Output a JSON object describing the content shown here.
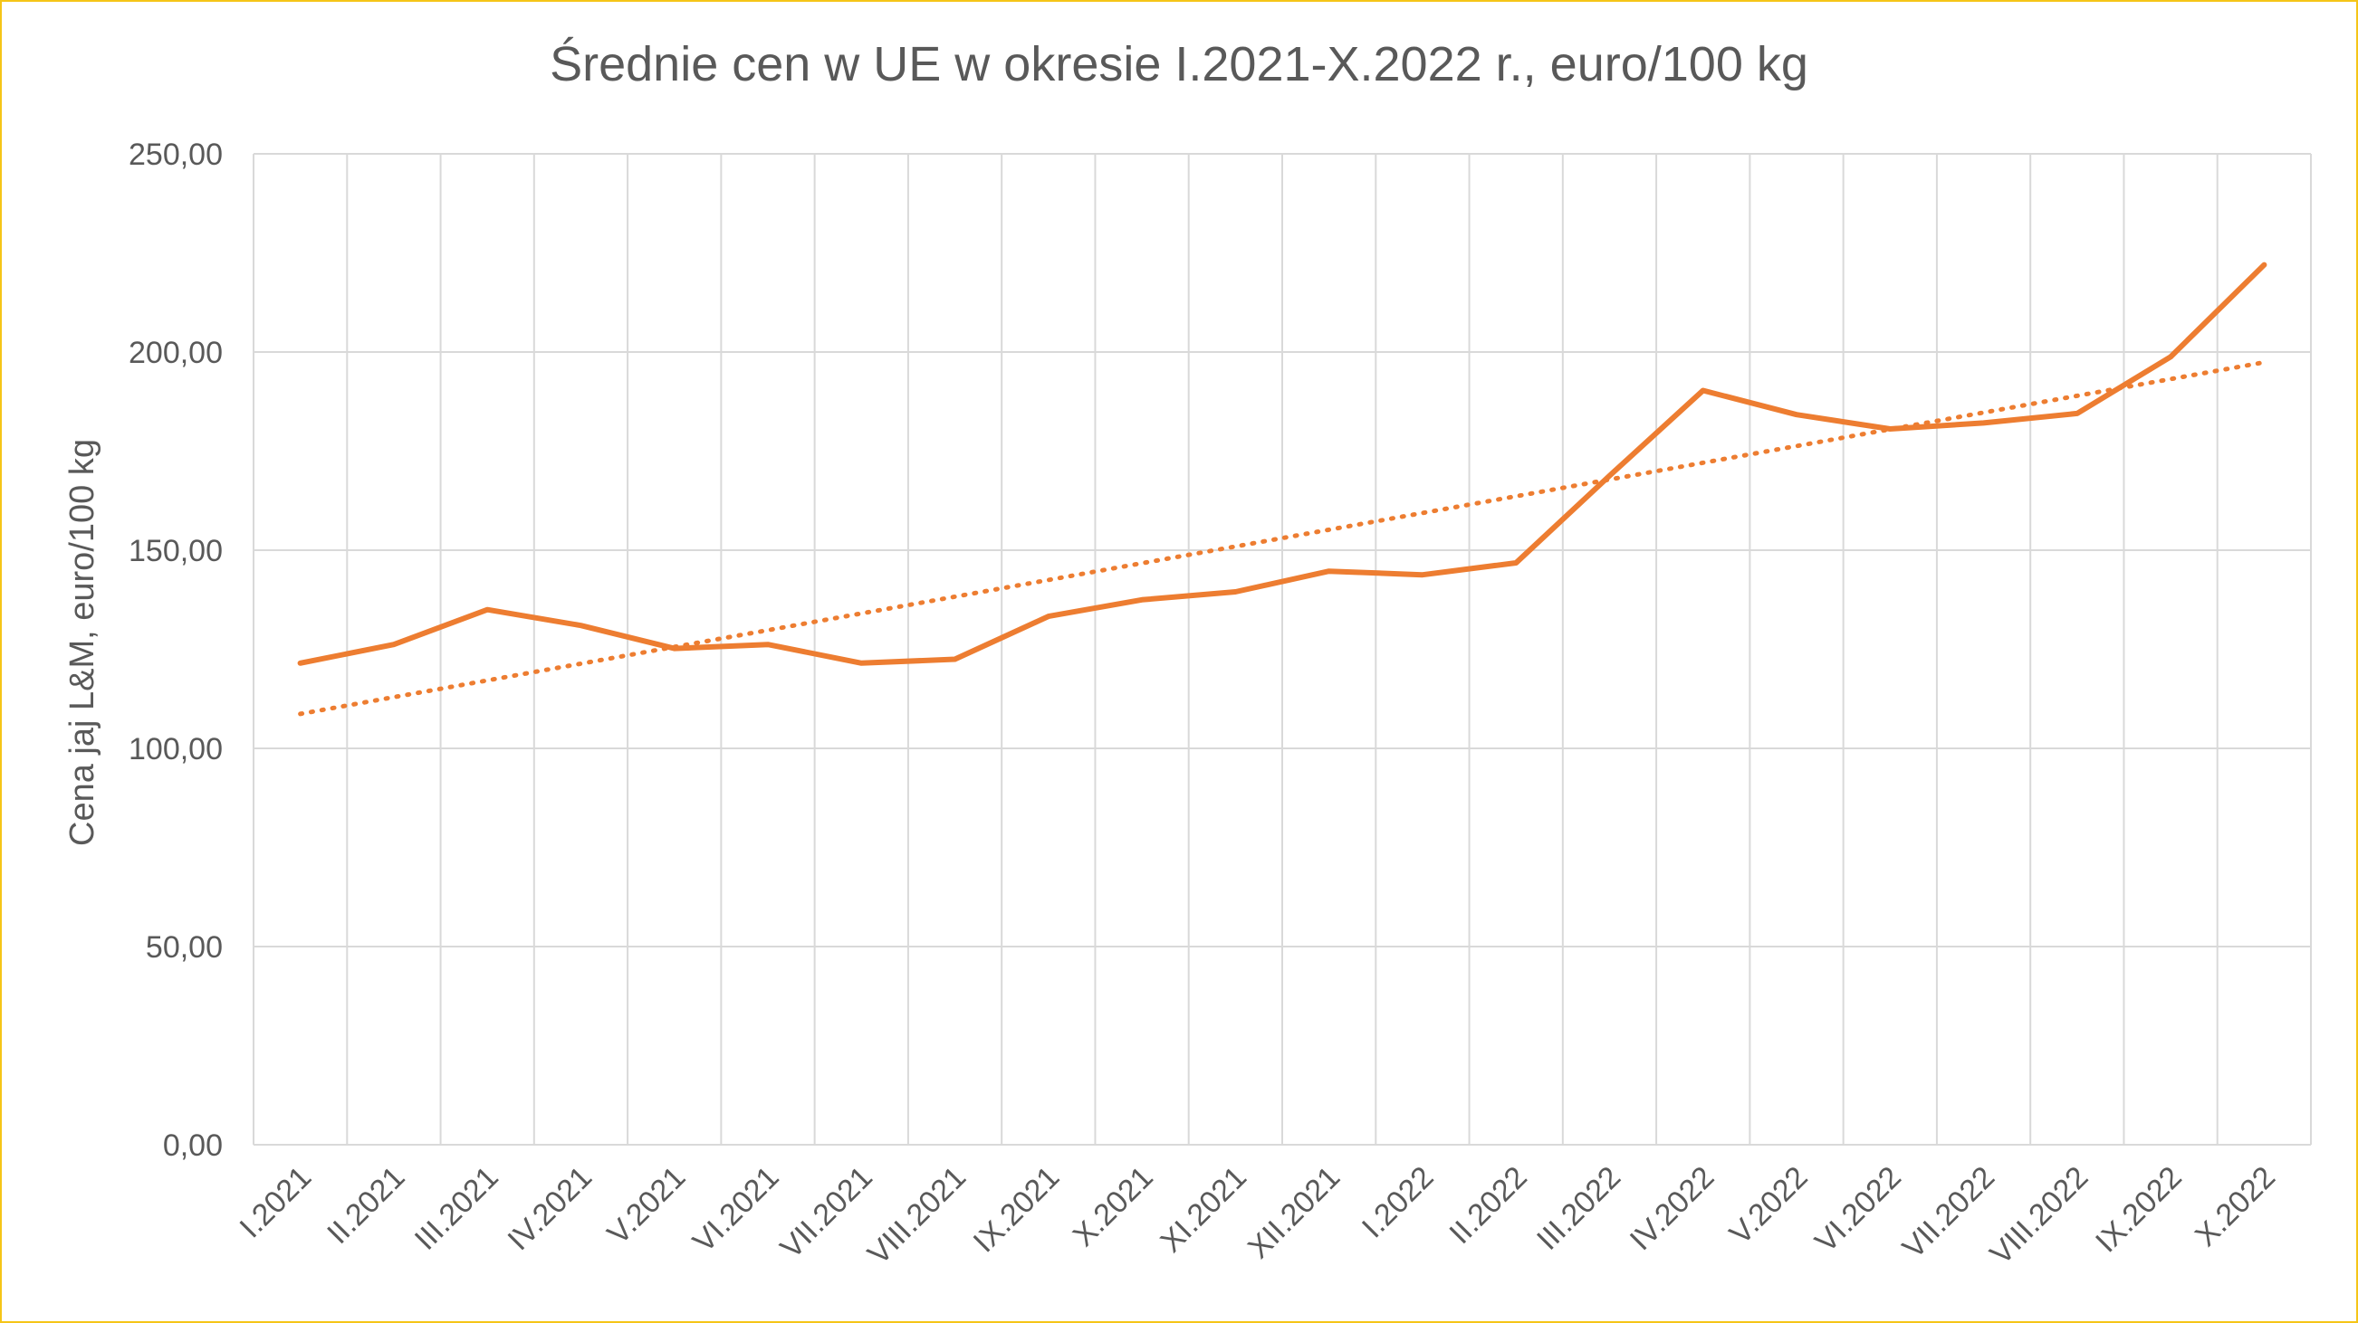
{
  "chart_data": {
    "type": "line",
    "title": "Średnie cen w UE w okresie I.2021-X.2022 r., euro/100 kg",
    "xlabel": "",
    "ylabel": "Cena jaj L&M, euro/100 kg",
    "ylim": [
      0,
      250
    ],
    "yticks": [
      "0,00",
      "50,00",
      "100,00",
      "150,00",
      "200,00",
      "250,00"
    ],
    "categories": [
      "I.2021",
      "II.2021",
      "III.2021",
      "IV.2021",
      "V.2021",
      "VI.2021",
      "VII.2021",
      "VIII.2021",
      "IX.2021",
      "X.2021",
      "XI.2021",
      "XII.2021",
      "I.2022",
      "II.2022",
      "III.2022",
      "IV.2022",
      "V.2022",
      "VI.2022",
      "VII.2022",
      "VIII.2022",
      "IX.2022",
      "X.2022"
    ],
    "series": [
      {
        "values": [
          121.5,
          126.2,
          135.0,
          131.0,
          125.2,
          126.2,
          121.5,
          122.5,
          133.3,
          137.5,
          139.5,
          144.7,
          143.8,
          146.8,
          168.8,
          190.3,
          184.2,
          180.6,
          182.1,
          184.5,
          198.8,
          222.0
        ],
        "color": "#ed7d31",
        "style": "solid"
      }
    ],
    "trendline": {
      "type": "linear",
      "color": "#ed7d31",
      "style": "dotted",
      "start": 108.7,
      "end": 197.4
    },
    "grid": true,
    "legend": "none"
  }
}
